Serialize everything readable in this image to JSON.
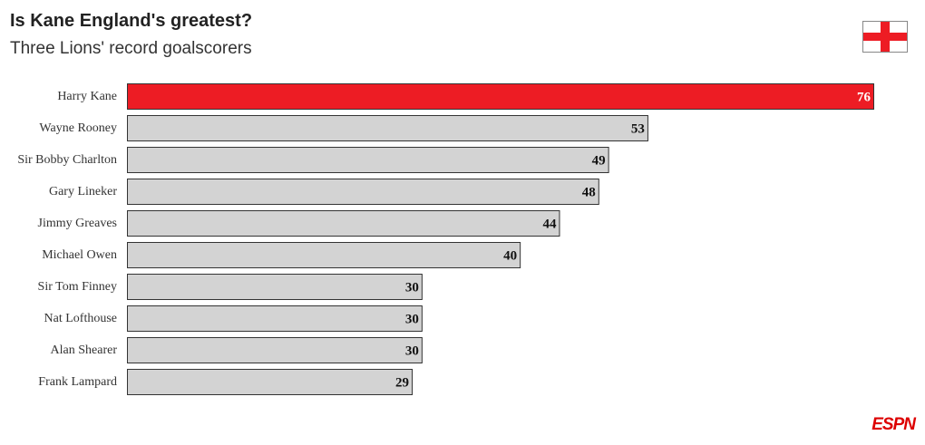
{
  "chart_data": {
    "type": "bar",
    "orientation": "horizontal",
    "title": "Is Kane England's greatest?",
    "subtitle": "Three Lions' record goalscorers",
    "categories": [
      "Harry Kane",
      "Wayne Rooney",
      "Sir Bobby Charlton",
      "Gary Lineker",
      "Jimmy Greaves",
      "Michael Owen",
      "Sir Tom Finney",
      "Nat Lofthouse",
      "Alan Shearer",
      "Frank Lampard"
    ],
    "values": [
      76,
      53,
      49,
      48,
      44,
      40,
      30,
      30,
      30,
      29
    ],
    "colors": [
      "#ed1c24",
      "#d3d3d3",
      "#d3d3d3",
      "#d3d3d3",
      "#d3d3d3",
      "#d3d3d3",
      "#d3d3d3",
      "#d3d3d3",
      "#d3d3d3",
      "#d3d3d3"
    ],
    "logo": "ESPN"
  }
}
